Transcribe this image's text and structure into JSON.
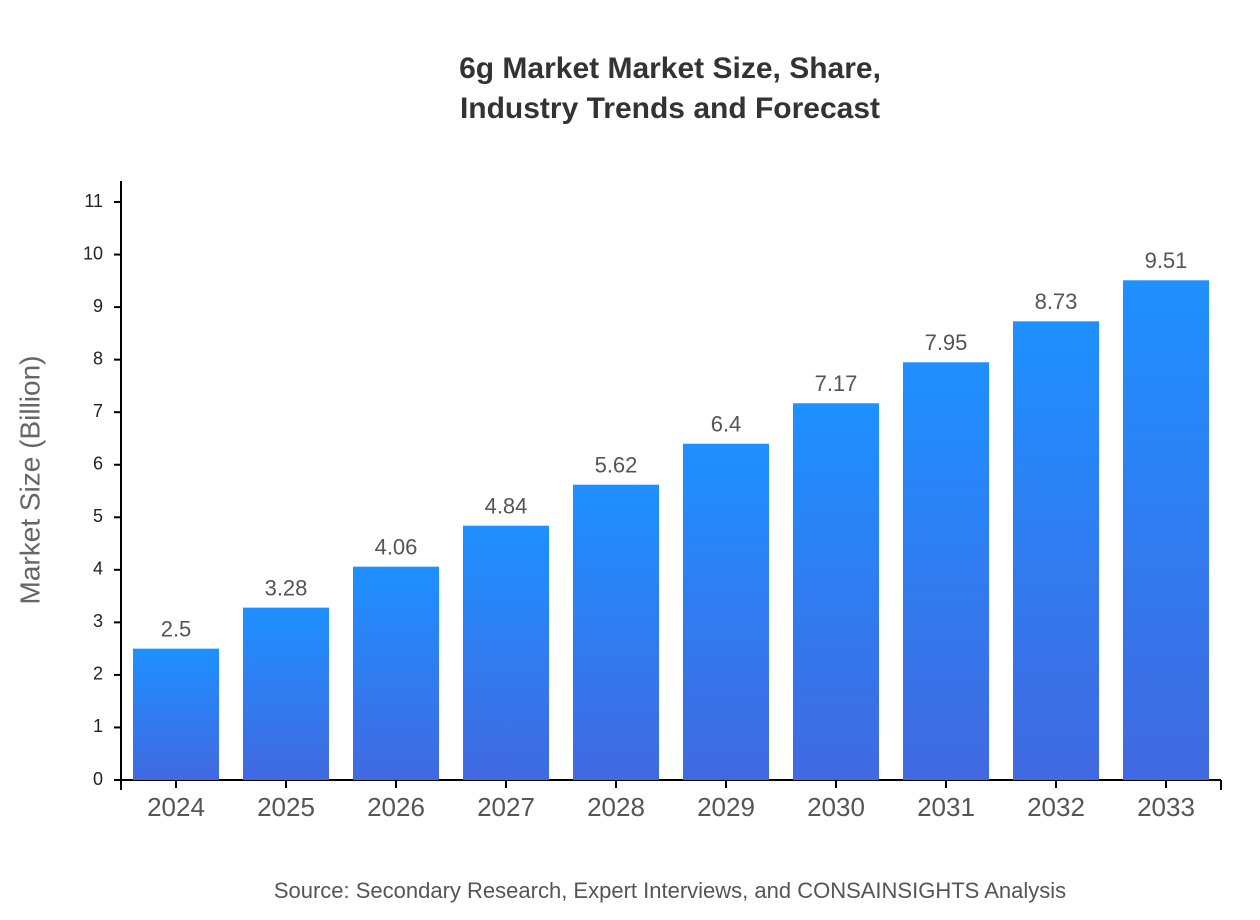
{
  "chart_data": {
    "type": "bar",
    "title": [
      "6g Market Market Size, Share,",
      "Industry Trends and Forecast"
    ],
    "y_label": "Market Size (Billion)",
    "source": "Source: Secondary Research, Expert Interviews, and CONSAINSIGHTS Analysis",
    "categories": [
      "2024",
      "2025",
      "2026",
      "2027",
      "2028",
      "2029",
      "2030",
      "2031",
      "2032",
      "2033"
    ],
    "values": [
      2.5,
      3.28,
      4.06,
      4.84,
      5.62,
      6.4,
      7.17,
      7.95,
      8.73,
      9.51
    ],
    "gradient": [
      "#1e90ff",
      "#4169e1"
    ],
    "ylim": [
      0,
      11.4
    ],
    "yticks": [
      0,
      1,
      2,
      3,
      4,
      5,
      6,
      7,
      8,
      9,
      10,
      11
    ],
    "grid": false
  }
}
